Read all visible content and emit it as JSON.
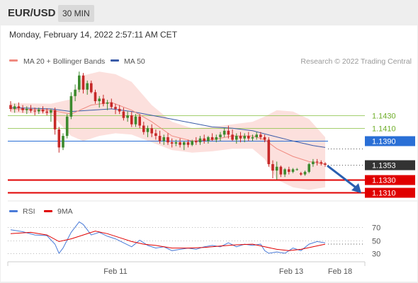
{
  "header": {
    "pair": "EUR/USD",
    "timeframe": "30 MIN"
  },
  "subheader": {
    "datetime": "Monday, February 14, 2022 2:57:11 AM CET"
  },
  "legend": {
    "ma20_label": "MA 20 + Bollinger Bands",
    "ma50_label": "MA 50",
    "ma20_color": "#f08a80",
    "ma50_color": "#3a5ba8",
    "credit": "Research © 2022 Trading Central"
  },
  "levels": [
    {
      "value": 1.143,
      "label": "1.1430",
      "kind": "resistance-minor",
      "color": "#8cc34a"
    },
    {
      "value": 1.141,
      "label": "1.1410",
      "kind": "resistance-minor",
      "color": "#8cc34a"
    },
    {
      "value": 1.139,
      "label": "1.1390",
      "kind": "resistance",
      "color": "#2a6fd6"
    },
    {
      "value": 1.1353,
      "label": "1.1353",
      "kind": "last-price",
      "color": "#333333"
    },
    {
      "value": 1.133,
      "label": "1.1330",
      "kind": "support",
      "color": "#e00000"
    },
    {
      "value": 1.131,
      "label": "1.1310",
      "kind": "support",
      "color": "#e00000"
    }
  ],
  "rsi_legend": {
    "rsi_label": "RSI",
    "ma9_label": "9MA",
    "rsi_color": "#4a7bd8",
    "ma9_color": "#e00000"
  },
  "rsi_ticks": [
    "70",
    "50",
    "30"
  ],
  "x_labels": [
    "Feb 11",
    "Feb 13",
    "Feb 18"
  ],
  "chart_data": {
    "type": "candlestick",
    "ylim": [
      1.13,
      1.151
    ],
    "candles": [
      [
        1.1446,
        1.1452,
        1.1436,
        1.144
      ],
      [
        1.144,
        1.1448,
        1.1434,
        1.1444
      ],
      [
        1.1444,
        1.145,
        1.1436,
        1.1441
      ],
      [
        1.1441,
        1.1446,
        1.1434,
        1.1438
      ],
      [
        1.1438,
        1.1444,
        1.1432,
        1.144
      ],
      [
        1.144,
        1.1446,
        1.1434,
        1.1437
      ],
      [
        1.1437,
        1.1442,
        1.143,
        1.1436
      ],
      [
        1.1436,
        1.1442,
        1.1432,
        1.1439
      ],
      [
        1.1439,
        1.1444,
        1.1433,
        1.1436
      ],
      [
        1.1436,
        1.1441,
        1.143,
        1.1434
      ],
      [
        1.1434,
        1.144,
        1.142,
        1.1438
      ],
      [
        1.1438,
        1.1442,
        1.14,
        1.1408
      ],
      [
        1.1408,
        1.1412,
        1.1372,
        1.138
      ],
      [
        1.138,
        1.1402,
        1.1376,
        1.1398
      ],
      [
        1.1398,
        1.1432,
        1.1394,
        1.1428
      ],
      [
        1.1428,
        1.1466,
        1.1424,
        1.146
      ],
      [
        1.146,
        1.1478,
        1.1452,
        1.147
      ],
      [
        1.147,
        1.1498,
        1.1466,
        1.1492
      ],
      [
        1.1492,
        1.1496,
        1.1464,
        1.147
      ],
      [
        1.147,
        1.1484,
        1.1462,
        1.148
      ],
      [
        1.148,
        1.1484,
        1.1464,
        1.1466
      ],
      [
        1.1466,
        1.147,
        1.1448,
        1.1452
      ],
      [
        1.1452,
        1.146,
        1.1442,
        1.1456
      ],
      [
        1.1456,
        1.1462,
        1.1444,
        1.1448
      ],
      [
        1.1448,
        1.1454,
        1.1438,
        1.145
      ],
      [
        1.145,
        1.1456,
        1.144,
        1.1443
      ],
      [
        1.1443,
        1.1448,
        1.1432,
        1.144
      ],
      [
        1.144,
        1.1446,
        1.1432,
        1.1436
      ],
      [
        1.1436,
        1.1442,
        1.1422,
        1.1426
      ],
      [
        1.1426,
        1.1436,
        1.142,
        1.143
      ],
      [
        1.143,
        1.1436,
        1.1412,
        1.1416
      ],
      [
        1.1416,
        1.1432,
        1.1412,
        1.1428
      ],
      [
        1.1428,
        1.1432,
        1.141,
        1.1414
      ],
      [
        1.1414,
        1.142,
        1.14,
        1.1404
      ],
      [
        1.1404,
        1.1414,
        1.1396,
        1.141
      ],
      [
        1.141,
        1.1416,
        1.1396,
        1.1402
      ],
      [
        1.1402,
        1.1408,
        1.1392,
        1.1398
      ],
      [
        1.1398,
        1.1406,
        1.1386,
        1.139
      ],
      [
        1.139,
        1.14,
        1.1384,
        1.1396
      ],
      [
        1.1396,
        1.1402,
        1.1384,
        1.1388
      ],
      [
        1.1388,
        1.1394,
        1.138,
        1.1386
      ],
      [
        1.1386,
        1.1392,
        1.1382,
        1.1388
      ],
      [
        1.1388,
        1.1394,
        1.138,
        1.1384
      ],
      [
        1.1384,
        1.139,
        1.1376,
        1.1388
      ],
      [
        1.1388,
        1.1392,
        1.138,
        1.1384
      ],
      [
        1.1384,
        1.1392,
        1.1382,
        1.139
      ],
      [
        1.139,
        1.1396,
        1.1384,
        1.1388
      ],
      [
        1.1388,
        1.1398,
        1.1384,
        1.1394
      ],
      [
        1.1394,
        1.14,
        1.1386,
        1.139
      ],
      [
        1.139,
        1.1398,
        1.1386,
        1.1396
      ],
      [
        1.1396,
        1.1402,
        1.139,
        1.1392
      ],
      [
        1.1392,
        1.14,
        1.1388,
        1.1396
      ],
      [
        1.1396,
        1.1404,
        1.139,
        1.14
      ],
      [
        1.14,
        1.141,
        1.1396,
        1.1406
      ],
      [
        1.1406,
        1.1414,
        1.1394,
        1.14
      ],
      [
        1.14,
        1.1408,
        1.139,
        1.1392
      ],
      [
        1.1392,
        1.1402,
        1.1386,
        1.1398
      ],
      [
        1.1398,
        1.1404,
        1.1388,
        1.1394
      ],
      [
        1.1394,
        1.1402,
        1.1388,
        1.1398
      ],
      [
        1.1398,
        1.1404,
        1.139,
        1.1394
      ],
      [
        1.1394,
        1.14,
        1.139,
        1.1396
      ],
      [
        1.1396,
        1.1404,
        1.1392,
        1.14
      ],
      [
        1.14,
        1.1404,
        1.1392,
        1.1396
      ],
      [
        1.1396,
        1.14,
        1.1388,
        1.1392
      ],
      [
        1.1392,
        1.1396,
        1.135,
        1.1354
      ],
      [
        1.1354,
        1.136,
        1.1332,
        1.1344
      ],
      [
        1.1344,
        1.1358,
        1.133,
        1.135
      ],
      [
        1.135,
        1.1352,
        1.1334,
        1.1338
      ],
      [
        1.1338,
        1.1348,
        1.1334,
        1.1346
      ],
      [
        1.1346,
        1.135,
        1.1338,
        1.1342
      ],
      [
        1.1342,
        1.1348,
        1.134,
        1.1346
      ],
      [
        1.1346,
        1.1348,
        1.1344,
        1.1346
      ],
      [
        1.134,
        1.1342,
        1.1336,
        1.1338
      ],
      [
        1.1338,
        1.1344,
        1.1336,
        1.1342
      ],
      [
        1.1342,
        1.1356,
        1.134,
        1.1354
      ],
      [
        1.1354,
        1.1362,
        1.135,
        1.1358
      ],
      [
        1.1358,
        1.1362,
        1.1352,
        1.1357
      ],
      [
        1.1357,
        1.136,
        1.1352,
        1.1355
      ],
      [
        1.1355,
        1.1357,
        1.135,
        1.1353
      ]
    ],
    "ma20": [
      [
        0,
        1.144
      ],
      [
        10,
        1.1438
      ],
      [
        15,
        1.1432
      ],
      [
        20,
        1.1446
      ],
      [
        25,
        1.145
      ],
      [
        30,
        1.1438
      ],
      [
        35,
        1.142
      ],
      [
        40,
        1.1398
      ],
      [
        45,
        1.139
      ],
      [
        50,
        1.1392
      ],
      [
        55,
        1.1398
      ],
      [
        60,
        1.1398
      ],
      [
        63,
        1.1392
      ],
      [
        66,
        1.1378
      ],
      [
        70,
        1.1366
      ],
      [
        74,
        1.1358
      ],
      [
        78,
        1.1354
      ]
    ],
    "ma50": [
      [
        0,
        1.1442
      ],
      [
        10,
        1.144
      ],
      [
        15,
        1.1436
      ],
      [
        20,
        1.1438
      ],
      [
        25,
        1.144
      ],
      [
        30,
        1.1436
      ],
      [
        35,
        1.143
      ],
      [
        40,
        1.1424
      ],
      [
        45,
        1.1418
      ],
      [
        50,
        1.1412
      ],
      [
        55,
        1.141
      ],
      [
        60,
        1.1406
      ],
      [
        65,
        1.1398
      ],
      [
        70,
        1.139
      ],
      [
        75,
        1.1383
      ],
      [
        78,
        1.138
      ]
    ],
    "bb_upper": [
      [
        0,
        1.1449
      ],
      [
        10,
        1.1448
      ],
      [
        15,
        1.1455
      ],
      [
        18,
        1.1492
      ],
      [
        22,
        1.1498
      ],
      [
        26,
        1.1494
      ],
      [
        30,
        1.1482
      ],
      [
        35,
        1.1446
      ],
      [
        40,
        1.142
      ],
      [
        45,
        1.141
      ],
      [
        50,
        1.1412
      ],
      [
        55,
        1.1416
      ],
      [
        60,
        1.142
      ],
      [
        63,
        1.1428
      ],
      [
        66,
        1.1438
      ],
      [
        70,
        1.1436
      ],
      [
        74,
        1.1424
      ],
      [
        78,
        1.1396
      ]
    ],
    "bb_lower": [
      [
        0,
        1.1434
      ],
      [
        10,
        1.1432
      ],
      [
        15,
        1.1398
      ],
      [
        18,
        1.139
      ],
      [
        22,
        1.1398
      ],
      [
        26,
        1.1402
      ],
      [
        30,
        1.14
      ],
      [
        35,
        1.1388
      ],
      [
        40,
        1.1376
      ],
      [
        45,
        1.1372
      ],
      [
        50,
        1.1374
      ],
      [
        55,
        1.1378
      ],
      [
        60,
        1.1378
      ],
      [
        63,
        1.1362
      ],
      [
        66,
        1.133
      ],
      [
        70,
        1.1318
      ],
      [
        74,
        1.1314
      ],
      [
        78,
        1.1318
      ]
    ],
    "rsi": [
      [
        0,
        66
      ],
      [
        3,
        63
      ],
      [
        6,
        58
      ],
      [
        9,
        57
      ],
      [
        11,
        44
      ],
      [
        12,
        30
      ],
      [
        13,
        38
      ],
      [
        15,
        62
      ],
      [
        17,
        78
      ],
      [
        18,
        74
      ],
      [
        20,
        58
      ],
      [
        22,
        62
      ],
      [
        24,
        56
      ],
      [
        26,
        52
      ],
      [
        28,
        46
      ],
      [
        30,
        40
      ],
      [
        32,
        50
      ],
      [
        34,
        42
      ],
      [
        36,
        38
      ],
      [
        38,
        40
      ],
      [
        40,
        34
      ],
      [
        44,
        38
      ],
      [
        46,
        36
      ],
      [
        48,
        40
      ],
      [
        50,
        42
      ],
      [
        52,
        40
      ],
      [
        54,
        46
      ],
      [
        56,
        40
      ],
      [
        58,
        44
      ],
      [
        60,
        42
      ],
      [
        62,
        44
      ],
      [
        63,
        34
      ],
      [
        64,
        30
      ],
      [
        66,
        32
      ],
      [
        68,
        30
      ],
      [
        70,
        38
      ],
      [
        72,
        34
      ],
      [
        74,
        44
      ],
      [
        76,
        48
      ],
      [
        78,
        46
      ]
    ],
    "rsi_ma9": [
      [
        0,
        60
      ],
      [
        5,
        62
      ],
      [
        9,
        58
      ],
      [
        12,
        48
      ],
      [
        15,
        52
      ],
      [
        18,
        58
      ],
      [
        21,
        64
      ],
      [
        24,
        60
      ],
      [
        27,
        54
      ],
      [
        30,
        48
      ],
      [
        33,
        44
      ],
      [
        36,
        42
      ],
      [
        40,
        38
      ],
      [
        44,
        38
      ],
      [
        48,
        39
      ],
      [
        52,
        41
      ],
      [
        56,
        43
      ],
      [
        60,
        44
      ],
      [
        63,
        40
      ],
      [
        66,
        36
      ],
      [
        69,
        34
      ],
      [
        72,
        36
      ],
      [
        75,
        40
      ],
      [
        78,
        44
      ]
    ],
    "rsi_ylim": [
      20,
      80
    ],
    "forecast_arrow": {
      "from": 1.1353,
      "to": 1.131
    }
  }
}
